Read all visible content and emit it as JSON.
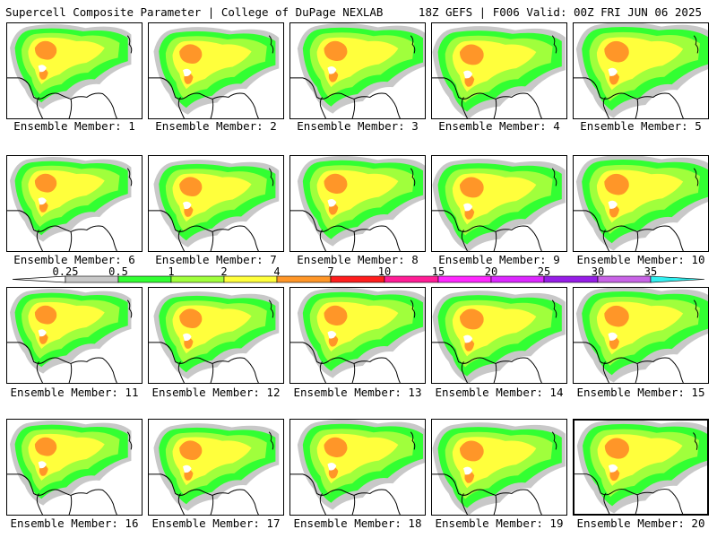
{
  "header": {
    "left": "Supercell Composite Parameter | College of DuPage NEXLAB",
    "right": "18Z GEFS | F006 Valid: 00Z FRI JUN 06 2025"
  },
  "colorbar": {
    "tick_labels": [
      "0.25",
      "0.5",
      "1",
      "2",
      "4",
      "7",
      "10",
      "15",
      "20",
      "25",
      "30",
      "35"
    ],
    "colors": [
      "#c8c8c8",
      "#32ff32",
      "#a0ff3c",
      "#ffff3c",
      "#ff9628",
      "#ff1e1e",
      "#ff1e96",
      "#ff28ff",
      "#dc28ff",
      "#961ee6",
      "#c864e6",
      "#32f0f0"
    ]
  },
  "members": [
    {
      "label": "Ensemble Member: 1"
    },
    {
      "label": "Ensemble Member: 2"
    },
    {
      "label": "Ensemble Member: 3"
    },
    {
      "label": "Ensemble Member: 4"
    },
    {
      "label": "Ensemble Member: 5"
    },
    {
      "label": "Ensemble Member: 6"
    },
    {
      "label": "Ensemble Member: 7"
    },
    {
      "label": "Ensemble Member: 8"
    },
    {
      "label": "Ensemble Member: 9"
    },
    {
      "label": "Ensemble Member: 10"
    },
    {
      "label": "Ensemble Member: 11"
    },
    {
      "label": "Ensemble Member: 12"
    },
    {
      "label": "Ensemble Member: 13"
    },
    {
      "label": "Ensemble Member: 14"
    },
    {
      "label": "Ensemble Member: 15"
    },
    {
      "label": "Ensemble Member: 16"
    },
    {
      "label": "Ensemble Member: 17"
    },
    {
      "label": "Ensemble Member: 18"
    },
    {
      "label": "Ensemble Member: 19"
    },
    {
      "label": "Ensemble Member: 20"
    }
  ],
  "selected_member": "20"
}
